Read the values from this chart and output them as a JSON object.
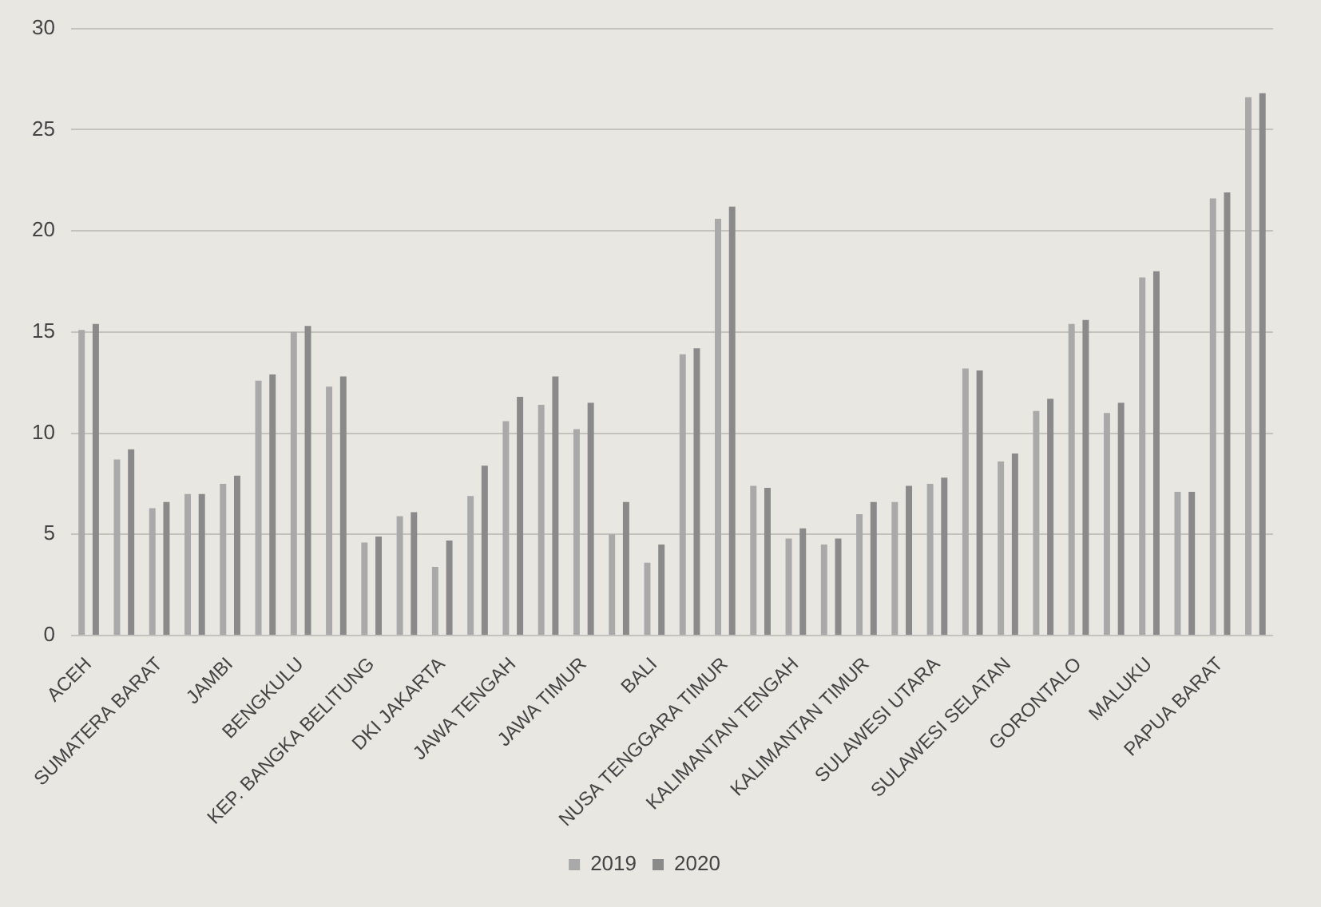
{
  "chart_data": {
    "type": "bar",
    "categories": [
      "ACEH",
      null,
      "SUMATERA BARAT",
      null,
      "JAMBI",
      null,
      "BENGKULU",
      null,
      "KEP. BANGKA BELITUNG",
      null,
      "DKI JAKARTA",
      null,
      "JAWA TENGAH",
      null,
      "JAWA TIMUR",
      null,
      "BALI",
      null,
      "NUSA TENGGARA TIMUR",
      null,
      "KALIMANTAN TENGAH",
      null,
      "KALIMANTAN TIMUR",
      null,
      "SULAWESI UTARA",
      null,
      "SULAWESI SELATAN",
      null,
      "GORONTALO",
      null,
      "MALUKU",
      null,
      "PAPUA BARAT",
      null
    ],
    "series": [
      {
        "name": "2019",
        "color": "#a9a9a9",
        "values": [
          15.1,
          8.7,
          6.3,
          7.0,
          7.5,
          12.6,
          15.0,
          12.3,
          4.6,
          5.9,
          3.4,
          6.9,
          10.6,
          11.4,
          10.2,
          5.0,
          3.6,
          13.9,
          20.6,
          7.4,
          4.8,
          4.5,
          6.0,
          6.6,
          7.5,
          13.2,
          8.6,
          11.1,
          15.4,
          11.0,
          17.7,
          7.1,
          21.6,
          26.6
        ]
      },
      {
        "name": "2020",
        "color": "#8a8a8a",
        "values": [
          15.4,
          9.2,
          6.6,
          7.0,
          7.9,
          12.9,
          15.3,
          12.8,
          4.9,
          6.1,
          4.7,
          8.4,
          11.8,
          12.8,
          11.5,
          6.6,
          4.5,
          14.2,
          21.2,
          7.3,
          5.3,
          4.8,
          6.6,
          7.4,
          7.8,
          13.1,
          9.0,
          11.7,
          15.6,
          11.5,
          18.0,
          7.1,
          21.9,
          26.8
        ]
      }
    ],
    "ylim": [
      0,
      30
    ],
    "yticks": [
      0,
      5,
      10,
      15,
      20,
      25,
      30
    ],
    "grid": "y",
    "legend": "bottom"
  }
}
